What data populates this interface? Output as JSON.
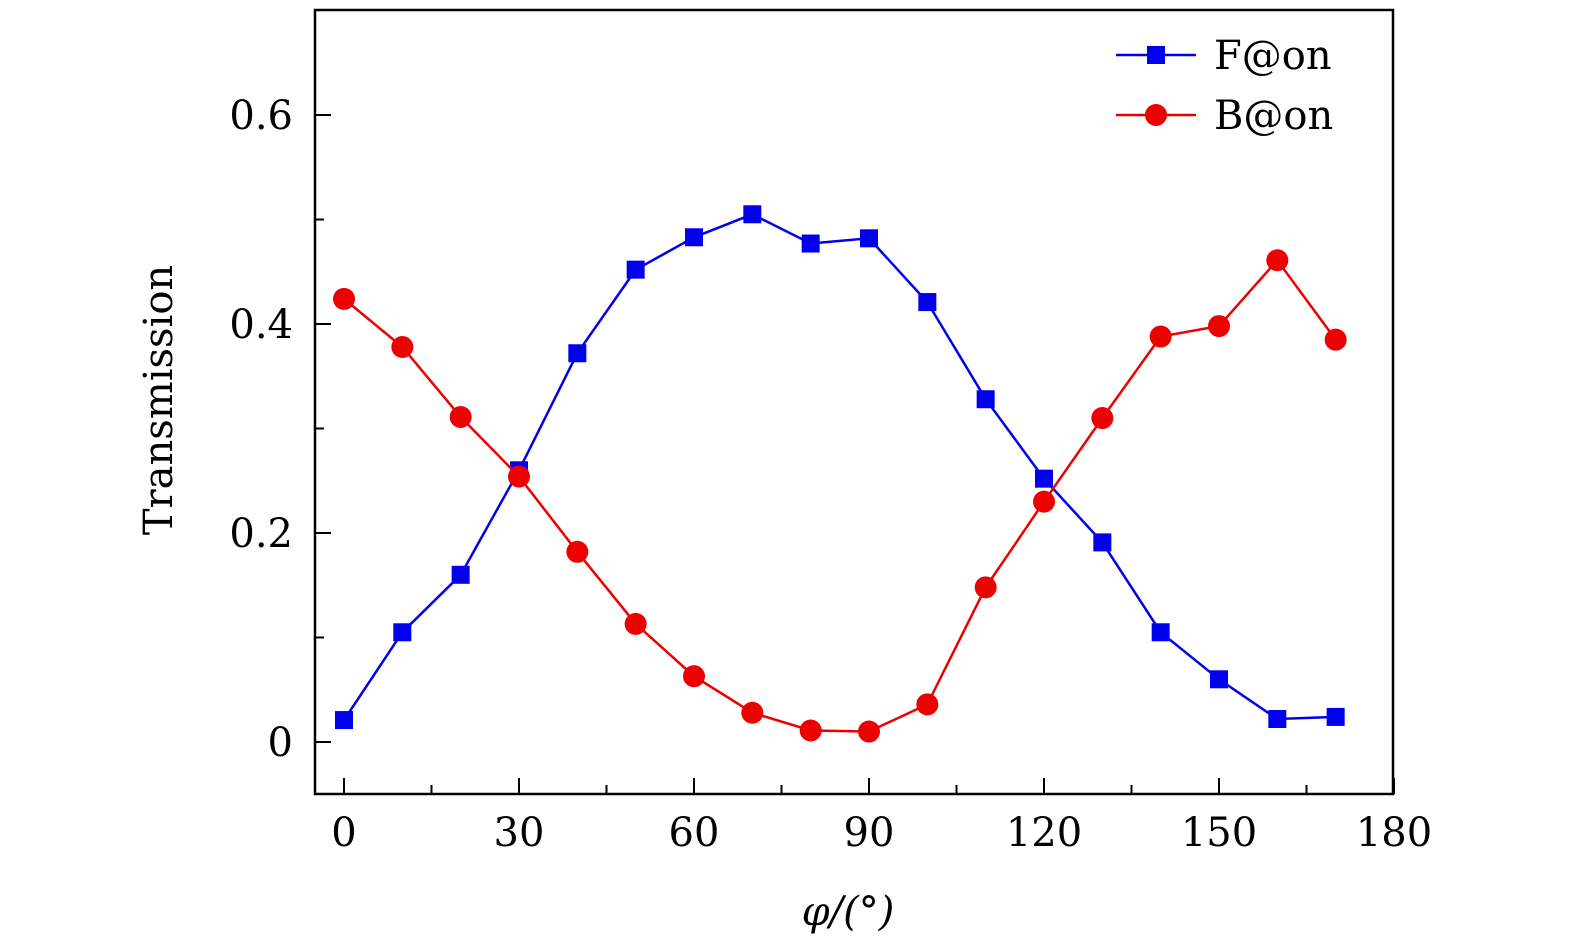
{
  "chart_data": {
    "type": "line",
    "title": "",
    "xlabel": "φ/(°)",
    "ylabel": "Transmission",
    "xlim": [
      -5,
      180
    ],
    "ylim": [
      -0.05,
      0.7
    ],
    "x_ticks": [
      0,
      30,
      60,
      90,
      120,
      150,
      180
    ],
    "x_tick_labels": [
      "0",
      "30",
      "60",
      "90",
      "120",
      "150",
      "180"
    ],
    "y_ticks": [
      0,
      0.2,
      0.4,
      0.6
    ],
    "y_tick_labels": [
      "0",
      "0.2",
      "0.4",
      "0.6"
    ],
    "x_minor_ticks": [
      15,
      45,
      75,
      105,
      135,
      165
    ],
    "y_minor_ticks": [
      0.1,
      0.3,
      0.5
    ],
    "grid": false,
    "legend_position": "top-right",
    "x": [
      0,
      10,
      20,
      30,
      40,
      50,
      60,
      70,
      80,
      90,
      100,
      110,
      120,
      130,
      140,
      150,
      160,
      170
    ],
    "series": [
      {
        "name": "F@on",
        "color": "#0000ee",
        "marker": "square",
        "values": [
          0.021,
          0.105,
          0.16,
          0.26,
          0.372,
          0.452,
          0.483,
          0.505,
          0.477,
          0.482,
          0.421,
          0.328,
          0.252,
          0.191,
          0.105,
          0.06,
          0.022,
          0.024
        ]
      },
      {
        "name": "B@on",
        "color": "#ee0000",
        "marker": "circle",
        "values": [
          0.424,
          0.378,
          0.311,
          0.254,
          0.182,
          0.113,
          0.063,
          0.028,
          0.011,
          0.01,
          0.036,
          0.148,
          0.23,
          0.31,
          0.388,
          0.398,
          0.461,
          0.385
        ]
      }
    ]
  }
}
